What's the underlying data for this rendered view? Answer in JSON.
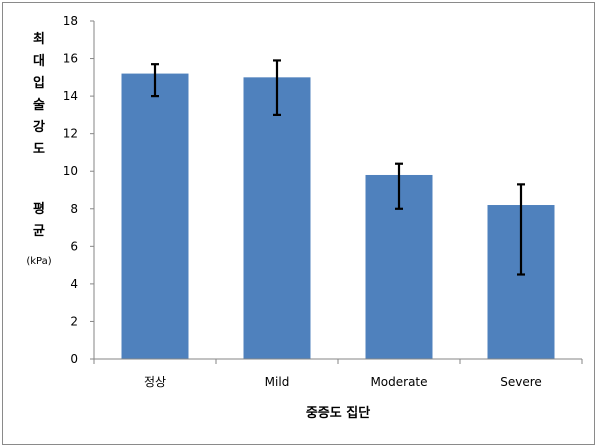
{
  "chart_data": {
    "type": "bar",
    "categories": [
      "정상",
      "Mild",
      "Moderate",
      "Severe"
    ],
    "values": [
      15.2,
      15.0,
      9.8,
      8.2
    ],
    "error_low": [
      14.0,
      13.0,
      8.0,
      4.5
    ],
    "error_high": [
      15.7,
      15.9,
      10.4,
      9.3
    ],
    "ylim": [
      0,
      18
    ],
    "yticks": [
      0,
      2,
      4,
      6,
      8,
      10,
      12,
      14,
      16,
      18
    ],
    "ylabel_top": [
      "최",
      "대",
      "입",
      "술",
      "강",
      "도"
    ],
    "ylabel_mid": [
      "평",
      "균"
    ],
    "ylabel_unit": "(kPa)",
    "xlabel": "중증도 집단",
    "bar_color": "#4F81BD",
    "grid": false,
    "legend": "none"
  }
}
